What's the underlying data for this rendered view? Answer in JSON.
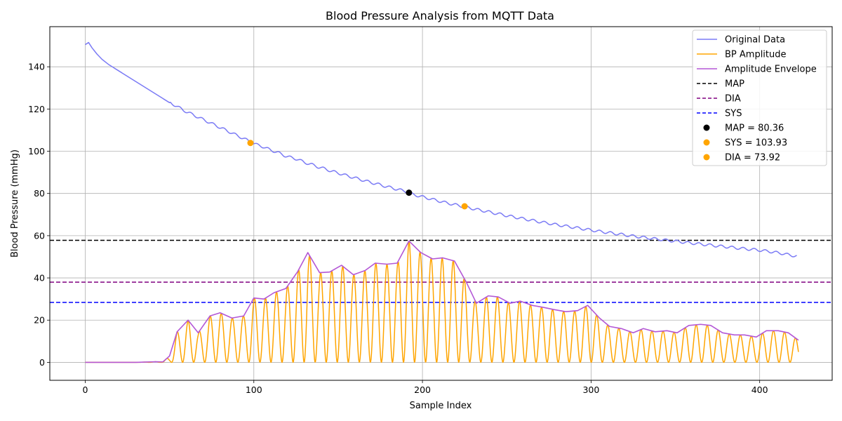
{
  "chart_data": {
    "type": "line",
    "title": "Blood Pressure Analysis from MQTT Data",
    "xlabel": "Sample Index",
    "ylabel": "Blood Pressure (mmHg)",
    "xlim": [
      -21,
      443
    ],
    "ylim": [
      -8.5,
      159
    ],
    "xticks": [
      0,
      100,
      200,
      300,
      400
    ],
    "yticks": [
      0,
      20,
      40,
      60,
      80,
      100,
      120,
      140
    ],
    "grid": true,
    "legend_position": "top-right",
    "series": [
      {
        "name": "Original Data",
        "kind": "line",
        "color": "#7b7bf5",
        "points": [
          [
            0,
            150.5
          ],
          [
            2,
            151.5
          ],
          [
            4,
            149
          ],
          [
            7,
            146
          ],
          [
            10,
            143.5
          ],
          [
            14,
            141
          ],
          [
            18,
            139
          ],
          [
            22,
            137
          ],
          [
            26,
            135
          ],
          [
            30,
            133
          ],
          [
            34,
            131
          ],
          [
            38,
            129
          ],
          [
            42,
            127
          ],
          [
            46,
            125
          ],
          [
            50,
            123
          ],
          [
            54,
            121.5
          ],
          [
            58,
            119.5
          ],
          [
            62,
            118
          ],
          [
            66,
            116.5
          ],
          [
            70,
            115
          ],
          [
            74,
            113.5
          ],
          [
            78,
            112
          ],
          [
            82,
            110.5
          ],
          [
            86,
            109
          ],
          [
            90,
            107.5
          ],
          [
            94,
            106
          ],
          [
            98,
            104.5
          ],
          [
            102,
            103
          ],
          [
            106,
            102
          ],
          [
            110,
            100.5
          ],
          [
            114,
            99.5
          ],
          [
            118,
            98
          ],
          [
            122,
            97
          ],
          [
            126,
            96.2
          ],
          [
            130,
            94.7
          ],
          [
            134,
            93.8
          ],
          [
            138,
            92.6
          ],
          [
            142,
            91.7
          ],
          [
            146,
            90.6
          ],
          [
            150,
            89.7
          ],
          [
            154,
            88.7
          ],
          [
            158,
            87.8
          ],
          [
            162,
            86.9
          ],
          [
            166,
            86
          ],
          [
            170,
            85.1
          ],
          [
            174,
            84.3
          ],
          [
            178,
            83.4
          ],
          [
            182,
            82.6
          ],
          [
            186,
            81.8
          ],
          [
            190,
            81
          ],
          [
            194,
            79.6
          ],
          [
            198,
            78.8
          ],
          [
            202,
            78
          ],
          [
            206,
            77.2
          ],
          [
            210,
            76.4
          ],
          [
            214,
            75.6
          ],
          [
            218,
            74.9
          ],
          [
            222,
            74.2
          ],
          [
            226,
            73.5
          ],
          [
            230,
            72.8
          ],
          [
            234,
            72.1
          ],
          [
            238,
            71.5
          ],
          [
            242,
            70.8
          ],
          [
            246,
            70.2
          ],
          [
            250,
            69.5
          ],
          [
            254,
            68.9
          ],
          [
            258,
            68.3
          ],
          [
            262,
            67.7
          ],
          [
            266,
            67.1
          ],
          [
            270,
            66.5
          ],
          [
            274,
            66
          ],
          [
            278,
            65.4
          ],
          [
            282,
            64.9
          ],
          [
            286,
            64.4
          ],
          [
            290,
            63.9
          ],
          [
            294,
            63.4
          ],
          [
            298,
            62.9
          ],
          [
            302,
            62.4
          ],
          [
            306,
            61.9
          ],
          [
            310,
            61.5
          ],
          [
            314,
            61
          ],
          [
            318,
            60.6
          ],
          [
            322,
            60.1
          ],
          [
            326,
            59.7
          ],
          [
            330,
            59.3
          ],
          [
            334,
            58.9
          ],
          [
            338,
            58.5
          ],
          [
            342,
            58.1
          ],
          [
            346,
            57.7
          ],
          [
            350,
            57.4
          ],
          [
            354,
            57
          ],
          [
            358,
            56.6
          ],
          [
            362,
            56.3
          ],
          [
            366,
            55.9
          ],
          [
            370,
            55.6
          ],
          [
            374,
            55.2
          ],
          [
            378,
            54.9
          ],
          [
            382,
            54.6
          ],
          [
            386,
            54.2
          ],
          [
            390,
            53.9
          ],
          [
            394,
            53.6
          ],
          [
            398,
            53.3
          ],
          [
            402,
            52.9
          ],
          [
            406,
            52.5
          ],
          [
            410,
            52
          ],
          [
            414,
            51.5
          ],
          [
            418,
            50.8
          ],
          [
            422,
            50.3
          ]
        ]
      },
      {
        "name": "BP Amplitude",
        "kind": "oscillation",
        "color": "#ffa500",
        "x_start": 0,
        "x_end": 423,
        "points": [
          [
            0,
            0
          ],
          [
            10,
            0
          ],
          [
            20,
            0
          ],
          [
            30,
            0
          ],
          [
            38,
            0.2
          ],
          [
            42,
            0.3
          ],
          [
            46,
            0.2
          ],
          [
            50,
            3
          ],
          [
            54.5,
            14.5
          ],
          [
            61,
            20
          ],
          [
            67,
            14
          ],
          [
            74,
            22
          ],
          [
            80,
            23.5
          ],
          [
            87,
            21
          ],
          [
            94,
            22
          ],
          [
            100,
            30.5
          ],
          [
            106,
            30
          ],
          [
            112,
            33
          ],
          [
            119,
            35
          ],
          [
            126,
            43
          ],
          [
            132,
            52
          ],
          [
            139,
            42.5
          ],
          [
            145,
            42.8
          ],
          [
            152,
            46
          ],
          [
            159,
            41.5
          ],
          [
            166,
            43.5
          ],
          [
            172,
            47
          ],
          [
            179,
            46.5
          ],
          [
            185,
            47
          ],
          [
            192,
            57.5
          ],
          [
            199,
            52
          ],
          [
            206,
            49
          ],
          [
            212,
            49.5
          ],
          [
            219,
            48
          ],
          [
            226,
            38
          ],
          [
            232,
            28
          ],
          [
            239,
            31.5
          ],
          [
            245,
            31
          ],
          [
            252,
            28
          ],
          [
            258,
            29
          ],
          [
            265,
            27
          ],
          [
            272,
            26
          ],
          [
            278,
            25
          ],
          [
            285,
            24
          ],
          [
            292,
            24.5
          ],
          [
            298,
            27
          ],
          [
            305,
            21
          ],
          [
            311,
            17
          ],
          [
            318,
            16
          ],
          [
            325,
            14
          ],
          [
            331,
            16
          ],
          [
            338,
            14.5
          ],
          [
            345,
            15
          ],
          [
            351,
            14
          ],
          [
            358,
            17.5
          ],
          [
            365,
            18
          ],
          [
            371,
            17.5
          ],
          [
            378,
            14
          ],
          [
            385,
            13
          ],
          [
            391,
            13
          ],
          [
            398,
            12
          ],
          [
            404,
            15
          ],
          [
            411,
            15
          ],
          [
            417,
            14
          ],
          [
            423,
            10.5
          ]
        ]
      },
      {
        "name": "Amplitude Envelope",
        "kind": "line",
        "color": "#b357d6",
        "points": [
          [
            0,
            0
          ],
          [
            10,
            0
          ],
          [
            20,
            0
          ],
          [
            30,
            0
          ],
          [
            38,
            0.2
          ],
          [
            42,
            0.3
          ],
          [
            46,
            0.2
          ],
          [
            50,
            3
          ],
          [
            54.5,
            14.5
          ],
          [
            61,
            20
          ],
          [
            67,
            14
          ],
          [
            74,
            22
          ],
          [
            80,
            23.5
          ],
          [
            87,
            21
          ],
          [
            94,
            22
          ],
          [
            100,
            30.5
          ],
          [
            106,
            30
          ],
          [
            112,
            33
          ],
          [
            119,
            35
          ],
          [
            126,
            43
          ],
          [
            132,
            52
          ],
          [
            139,
            42.5
          ],
          [
            145,
            42.8
          ],
          [
            152,
            46
          ],
          [
            159,
            41.5
          ],
          [
            166,
            43.5
          ],
          [
            172,
            47
          ],
          [
            179,
            46.5
          ],
          [
            185,
            47
          ],
          [
            192,
            57.5
          ],
          [
            199,
            52
          ],
          [
            206,
            49
          ],
          [
            212,
            49.5
          ],
          [
            219,
            48
          ],
          [
            226,
            38
          ],
          [
            232,
            28
          ],
          [
            239,
            31.5
          ],
          [
            245,
            31
          ],
          [
            252,
            28
          ],
          [
            258,
            29
          ],
          [
            265,
            27
          ],
          [
            272,
            26
          ],
          [
            278,
            25
          ],
          [
            285,
            24
          ],
          [
            292,
            24.5
          ],
          [
            298,
            27
          ],
          [
            305,
            21
          ],
          [
            311,
            17
          ],
          [
            318,
            16
          ],
          [
            325,
            14
          ],
          [
            331,
            16
          ],
          [
            338,
            14.5
          ],
          [
            345,
            15
          ],
          [
            351,
            14
          ],
          [
            358,
            17.5
          ],
          [
            365,
            18
          ],
          [
            371,
            17.5
          ],
          [
            378,
            14
          ],
          [
            385,
            13
          ],
          [
            391,
            13
          ],
          [
            398,
            12
          ],
          [
            404,
            15
          ],
          [
            411,
            15
          ],
          [
            417,
            14
          ],
          [
            423,
            10.5
          ]
        ]
      },
      {
        "name": "MAP",
        "kind": "hline",
        "y": 57.8,
        "color": "#000000",
        "dash": "dashed"
      },
      {
        "name": "DIA",
        "kind": "hline",
        "y": 38,
        "color": "#800080",
        "dash": "dashed"
      },
      {
        "name": "SYS",
        "kind": "hline",
        "y": 28.4,
        "color": "#0000ff",
        "dash": "dashed"
      },
      {
        "name": "MAP = 80.36",
        "kind": "point",
        "x": 192,
        "y": 80.36,
        "color": "#000000"
      },
      {
        "name": "SYS = 103.93",
        "kind": "point",
        "x": 98,
        "y": 103.93,
        "color": "#ffa500"
      },
      {
        "name": "DIA = 73.92",
        "kind": "point",
        "x": 225,
        "y": 73.92,
        "color": "#ffa500"
      }
    ]
  }
}
